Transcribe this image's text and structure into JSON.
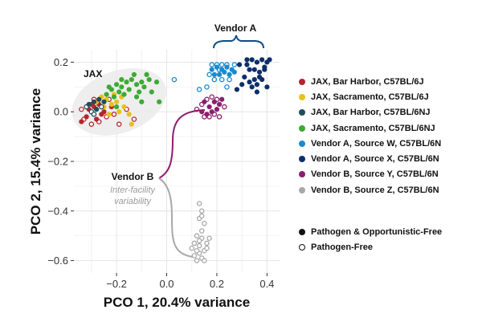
{
  "chart_data": {
    "type": "scatter",
    "xlabel": "PCO 1, 20.4% variance",
    "ylabel": "PCO 2, 15.4% variance",
    "xlim": [
      -0.37,
      0.45
    ],
    "ylim": [
      -0.65,
      0.25
    ],
    "xticks": [
      -0.2,
      0.0,
      0.2,
      0.4
    ],
    "xtick_labels": [
      "−0.2",
      "0.0",
      "0.2",
      "0.4"
    ],
    "yticks": [
      0.2,
      0.0,
      -0.2,
      -0.4,
      -0.6
    ],
    "ytick_labels": [
      "0.2",
      "0.0",
      "−0.2",
      "−0.4",
      "−0.6"
    ],
    "grid": true,
    "legend_position": "right",
    "annotations": {
      "jax": "JAX",
      "vendor_a": "Vendor A",
      "vendor_b": "Vendor B",
      "vendor_b_note_line1": "Inter-facility",
      "vendor_b_note_line2": "variability"
    },
    "series": [
      {
        "name": "JAX, Bar Harbor, C57BL/6J",
        "color": "#b5252d",
        "filled": [
          [
            -0.34,
            -0.04
          ],
          [
            -0.32,
            -0.02
          ],
          [
            -0.29,
            0.02
          ],
          [
            -0.27,
            0.03
          ],
          [
            -0.31,
            0.01
          ],
          [
            -0.25,
            0.0
          ],
          [
            -0.28,
            -0.03
          ],
          [
            -0.22,
            0.02
          ],
          [
            -0.3,
            0.03
          ],
          [
            -0.26,
            -0.01
          ]
        ],
        "open": [
          [
            -0.34,
            0.01
          ],
          [
            -0.33,
            -0.03
          ],
          [
            -0.3,
            -0.05
          ],
          [
            -0.27,
            -0.04
          ],
          [
            -0.24,
            -0.02
          ],
          [
            -0.21,
            -0.01
          ],
          [
            -0.19,
            -0.05
          ],
          [
            -0.16,
            0.01
          ],
          [
            -0.13,
            -0.03
          ],
          [
            -0.29,
            0.05
          ],
          [
            -0.23,
            0.05
          ]
        ]
      },
      {
        "name": "JAX, Sacramento, C57BL/6J",
        "color": "#e8c11a",
        "filled": [
          [
            -0.28,
            0.04
          ],
          [
            -0.26,
            0.06
          ],
          [
            -0.24,
            0.05
          ],
          [
            -0.22,
            0.03
          ],
          [
            -0.2,
            0.04
          ],
          [
            -0.19,
            0.0
          ],
          [
            -0.17,
            0.02
          ],
          [
            -0.15,
            -0.01
          ],
          [
            -0.25,
            0.02
          ],
          [
            -0.23,
            -0.01
          ],
          [
            -0.14,
            -0.05
          ],
          [
            -0.21,
            0.07
          ],
          [
            -0.18,
            0.06
          ]
        ],
        "open": []
      },
      {
        "name": "JAX, Bar Harbor, C57BL/6NJ",
        "color": "#1f4e5a",
        "filled": [
          [
            -0.31,
            0.03
          ],
          [
            -0.29,
            0.04
          ],
          [
            -0.27,
            0.05
          ],
          [
            -0.28,
            0.01
          ],
          [
            -0.25,
            0.04
          ]
        ],
        "open": [
          [
            -0.32,
            0.02
          ],
          [
            -0.3,
            0.0
          ],
          [
            -0.26,
            0.02
          ],
          [
            -0.29,
            -0.01
          ]
        ]
      },
      {
        "name": "JAX, Sacramento, C57BL/6NJ",
        "color": "#3daa35",
        "filled": [
          [
            -0.24,
            0.07
          ],
          [
            -0.22,
            0.09
          ],
          [
            -0.2,
            0.11
          ],
          [
            -0.18,
            0.1
          ],
          [
            -0.16,
            0.12
          ],
          [
            -0.14,
            0.13
          ],
          [
            -0.12,
            0.11
          ],
          [
            -0.1,
            0.12
          ],
          [
            -0.09,
            0.1
          ],
          [
            -0.07,
            0.13
          ],
          [
            -0.06,
            0.08
          ],
          [
            -0.11,
            0.08
          ],
          [
            -0.13,
            0.15
          ],
          [
            -0.15,
            0.09
          ],
          [
            -0.17,
            0.07
          ],
          [
            -0.19,
            0.08
          ],
          [
            -0.21,
            0.06
          ],
          [
            -0.08,
            0.15
          ],
          [
            -0.04,
            0.12
          ],
          [
            -0.03,
            0.04
          ],
          [
            -0.23,
            0.1
          ],
          [
            -0.12,
            0.06
          ],
          [
            -0.1,
            0.04
          ],
          [
            -0.2,
            0.02
          ],
          [
            -0.18,
            0.13
          ]
        ],
        "open": []
      },
      {
        "name": "Vendor A, Source W, C57BL/6N",
        "color": "#1a8ad0",
        "filled": [
          [
            0.18,
            0.17
          ],
          [
            0.2,
            0.18
          ],
          [
            0.22,
            0.17
          ],
          [
            0.24,
            0.18
          ],
          [
            0.26,
            0.17
          ],
          [
            0.21,
            0.15
          ],
          [
            0.23,
            0.16
          ],
          [
            0.25,
            0.15
          ],
          [
            0.19,
            0.15
          ],
          [
            0.27,
            0.16
          ]
        ],
        "open": [
          [
            0.18,
            0.19
          ],
          [
            0.2,
            0.19
          ],
          [
            0.22,
            0.19
          ],
          [
            0.24,
            0.19
          ],
          [
            0.17,
            0.15
          ],
          [
            0.19,
            0.13
          ],
          [
            0.22,
            0.13
          ],
          [
            0.25,
            0.13
          ],
          [
            0.16,
            0.1
          ],
          [
            0.24,
            0.1
          ],
          [
            0.13,
            0.09
          ],
          [
            0.03,
            0.13
          ],
          [
            0.27,
            0.19
          ],
          [
            0.21,
            0.17
          ]
        ]
      },
      {
        "name": "Vendor A, Source X, C57BL/6N",
        "color": "#0c2f6b",
        "filled": [
          [
            0.32,
            0.19
          ],
          [
            0.34,
            0.21
          ],
          [
            0.36,
            0.2
          ],
          [
            0.38,
            0.21
          ],
          [
            0.4,
            0.2
          ],
          [
            0.39,
            0.17
          ],
          [
            0.37,
            0.16
          ],
          [
            0.35,
            0.17
          ],
          [
            0.33,
            0.17
          ],
          [
            0.31,
            0.14
          ],
          [
            0.33,
            0.12
          ],
          [
            0.35,
            0.13
          ],
          [
            0.37,
            0.14
          ],
          [
            0.36,
            0.11
          ],
          [
            0.38,
            0.13
          ],
          [
            0.4,
            0.1
          ],
          [
            0.34,
            0.1
          ],
          [
            0.39,
            0.18
          ],
          [
            0.28,
            0.09
          ],
          [
            0.32,
            0.21
          ],
          [
            0.36,
            0.08
          ],
          [
            0.3,
            0.11
          ],
          [
            0.41,
            0.21
          ],
          [
            0.29,
            0.19
          ]
        ],
        "open": []
      },
      {
        "name": "Vendor B, Source Y, C57BL/6N",
        "color": "#8d1e6e",
        "filled": [
          [
            0.15,
            0.04
          ],
          [
            0.17,
            0.02
          ],
          [
            0.19,
            0.04
          ],
          [
            0.21,
            0.03
          ],
          [
            0.16,
            -0.01
          ],
          [
            0.18,
            0.0
          ],
          [
            0.2,
            0.01
          ],
          [
            0.14,
            0.0
          ],
          [
            0.22,
            0.05
          ]
        ],
        "open": [
          [
            0.14,
            0.03
          ],
          [
            0.16,
            0.05
          ],
          [
            0.18,
            0.06
          ],
          [
            0.2,
            0.05
          ],
          [
            0.15,
            -0.02
          ],
          [
            0.17,
            -0.02
          ],
          [
            0.19,
            -0.01
          ],
          [
            0.21,
            -0.02
          ],
          [
            0.12,
            0.01
          ],
          [
            0.23,
            0.02
          ]
        ]
      },
      {
        "name": "Vendor B, Source Z, C57BL/6N",
        "color": "#a8a8a8",
        "filled": [],
        "open": [
          [
            0.13,
            -0.37
          ],
          [
            0.14,
            -0.4
          ],
          [
            0.13,
            -0.43
          ],
          [
            0.15,
            -0.45
          ],
          [
            0.14,
            -0.48
          ],
          [
            0.12,
            -0.5
          ],
          [
            0.14,
            -0.51
          ],
          [
            0.16,
            -0.53
          ],
          [
            0.13,
            -0.54
          ],
          [
            0.11,
            -0.53
          ],
          [
            0.15,
            -0.56
          ],
          [
            0.13,
            -0.57
          ],
          [
            0.16,
            -0.55
          ],
          [
            0.12,
            -0.56
          ],
          [
            0.14,
            -0.59
          ],
          [
            0.11,
            -0.58
          ],
          [
            0.15,
            -0.6
          ],
          [
            0.13,
            -0.52
          ],
          [
            0.17,
            -0.51
          ],
          [
            0.1,
            -0.55
          ],
          [
            0.12,
            -0.6
          ],
          [
            0.14,
            -0.42
          ]
        ]
      }
    ],
    "marker_legend": [
      {
        "label": "Pathogen & Opportunistic-Free",
        "filled": true
      },
      {
        "label": "Pathogen-Free",
        "filled": false
      }
    ]
  }
}
